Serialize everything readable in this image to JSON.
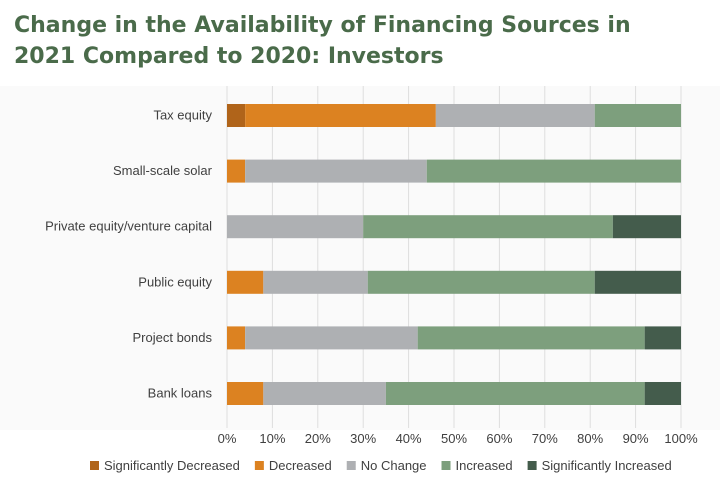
{
  "chart_data": {
    "type": "bar",
    "orientation": "horizontal",
    "stacked": true,
    "title_lines": [
      "Change in the Availability of Financing Sources in",
      "2021 Compared to 2020: Investors"
    ],
    "xlabel": "",
    "ylabel": "",
    "xlim": [
      0,
      100
    ],
    "x_ticks": [
      "0%",
      "10%",
      "20%",
      "30%",
      "40%",
      "50%",
      "60%",
      "70%",
      "80%",
      "90%",
      "100%"
    ],
    "grid": "vertical",
    "legend_position": "bottom",
    "categories": [
      "Tax equity",
      "Small-scale solar",
      "Private equity/venture capital",
      "Public equity",
      "Project bonds",
      "Bank loans"
    ],
    "series": [
      {
        "name": "Significantly Decreased",
        "color": "#b0641a",
        "values": [
          4,
          0,
          0,
          0,
          0,
          0
        ]
      },
      {
        "name": "Decreased",
        "color": "#dc8221",
        "values": [
          42,
          4,
          0,
          8,
          4,
          8
        ]
      },
      {
        "name": "No Change",
        "color": "#aeb0b3",
        "values": [
          35,
          40,
          30,
          23,
          38,
          27
        ]
      },
      {
        "name": "Increased",
        "color": "#7d9f7d",
        "values": [
          19,
          56,
          55,
          50,
          50,
          57
        ]
      },
      {
        "name": "Significantly Increased",
        "color": "#445c4c",
        "values": [
          0,
          0,
          15,
          19,
          8,
          8
        ]
      }
    ]
  }
}
